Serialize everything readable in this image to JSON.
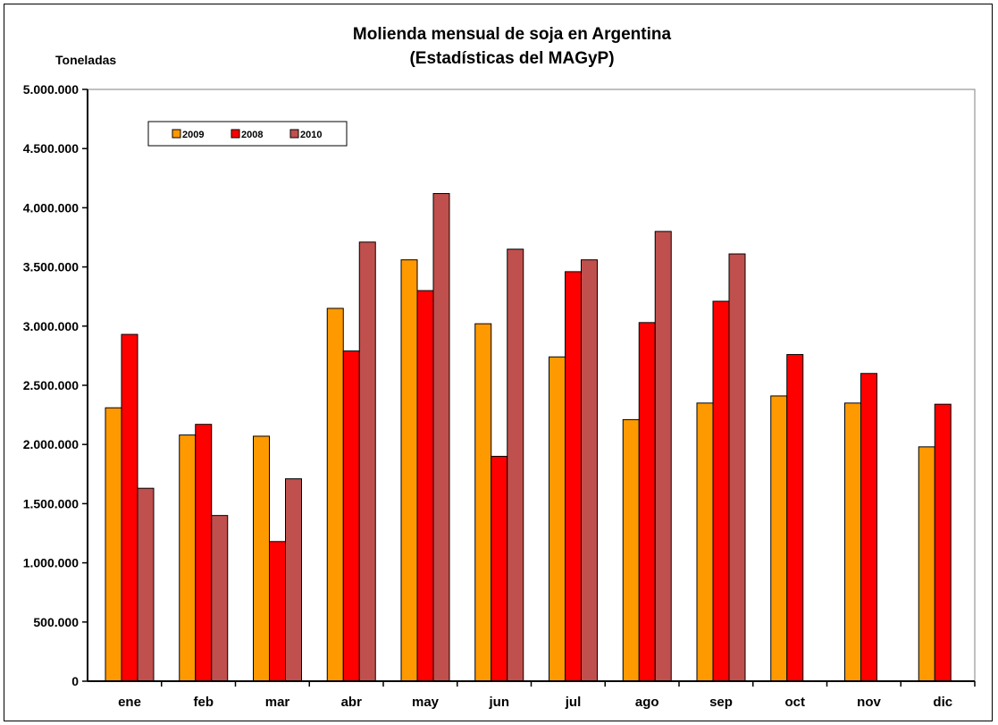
{
  "chart_data": {
    "type": "bar",
    "title": "Molienda mensual de soja en Argentina",
    "subtitle": "(Estadísticas del MAGyP)",
    "ylabel": "Toneladas",
    "xlabel": "",
    "ylim": [
      0,
      5000000
    ],
    "yticks": [
      0,
      500000,
      1000000,
      1500000,
      2000000,
      2500000,
      3000000,
      3500000,
      4000000,
      4500000,
      5000000
    ],
    "ytick_labels": [
      "0",
      "500.000",
      "1.000.000",
      "1.500.000",
      "2.000.000",
      "2.500.000",
      "3.000.000",
      "3.500.000",
      "4.000.000",
      "4.500.000",
      "5.000.000"
    ],
    "grid": false,
    "legend_position": "top-left",
    "categories": [
      "ene",
      "feb",
      "mar",
      "abr",
      "may",
      "jun",
      "jul",
      "ago",
      "sep",
      "oct",
      "nov",
      "dic"
    ],
    "series": [
      {
        "name": "2009",
        "color": "#FF9900",
        "values": [
          2310000,
          2080000,
          2070000,
          3150000,
          3560000,
          3020000,
          2740000,
          2210000,
          2350000,
          2410000,
          2350000,
          1980000
        ]
      },
      {
        "name": "2008",
        "color": "#FF0000",
        "values": [
          2930000,
          2170000,
          1180000,
          2790000,
          3300000,
          1900000,
          3460000,
          3030000,
          3210000,
          2760000,
          2600000,
          2340000
        ]
      },
      {
        "name": "2010",
        "color": "#C0504D",
        "values": [
          1630000,
          1400000,
          1710000,
          3710000,
          4120000,
          3650000,
          3560000,
          3800000,
          3610000,
          null,
          null,
          null
        ]
      }
    ]
  }
}
